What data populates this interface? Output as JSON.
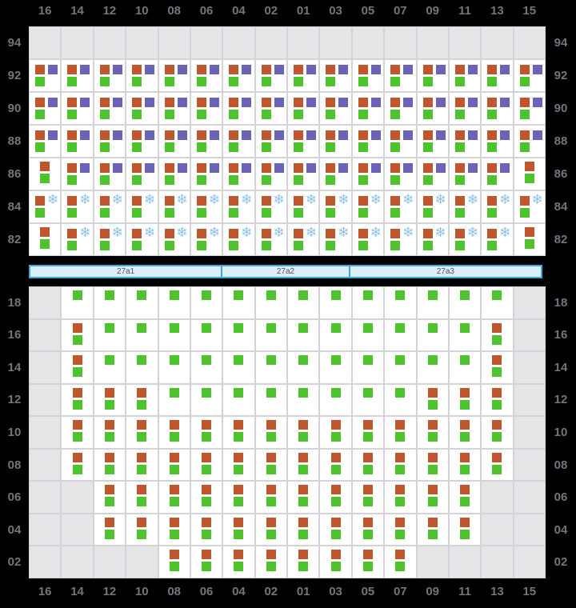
{
  "colors": {
    "background": "#000000",
    "cell_bg": "#ffffff",
    "empty_bg": "#e5e5e7",
    "grid_line": "#d4d4d8",
    "label": "#74747e",
    "orange": "#c0562e",
    "green": "#4ec32d",
    "purple": "#6b63b6",
    "snow": "#8ec1e8",
    "bar_fill": "#ddeffa",
    "bar_border": "#3fa7dc",
    "bar_text": "#54545e"
  },
  "icons": {
    "reefer_glyph": "❄"
  },
  "top_axis": {
    "labels": [
      "16",
      "14",
      "12",
      "10",
      "08",
      "06",
      "04",
      "02",
      "01",
      "03",
      "05",
      "07",
      "09",
      "11",
      "13",
      "15"
    ]
  },
  "bottom_axis": {
    "labels": [
      "16",
      "14",
      "12",
      "10",
      "08",
      "06",
      "04",
      "02",
      "01",
      "03",
      "05",
      "07",
      "09",
      "11",
      "13",
      "15"
    ]
  },
  "bay_bar": {
    "segments": [
      {
        "label": "27a1",
        "width_pct": 37.5
      },
      {
        "label": "27a2",
        "width_pct": 25.0
      },
      {
        "label": "27a3",
        "width_pct": 37.5
      }
    ]
  },
  "cell_styles": {
    "OPG": [
      {
        "kind": "orange",
        "slot": "tl"
      },
      {
        "kind": "purple",
        "slot": "tr"
      },
      {
        "kind": "green",
        "slot": "bl"
      }
    ],
    "OGS": [
      {
        "kind": "orange",
        "slot": "tl"
      },
      {
        "kind": "snow",
        "slot": "tr"
      },
      {
        "kind": "green",
        "slot": "bl"
      }
    ],
    "OG": [
      {
        "kind": "orange",
        "slot": "c1"
      },
      {
        "kind": "green",
        "slot": "c2"
      }
    ],
    "OG2": [
      {
        "kind": "orange",
        "slot": "c1"
      },
      {
        "kind": "green",
        "slot": "c2"
      }
    ],
    "G1": [
      {
        "kind": "green",
        "slot": "c1"
      }
    ],
    "-": []
  },
  "top_grid": {
    "row_labels": [
      "94",
      "92",
      "90",
      "88",
      "86",
      "84",
      "82"
    ],
    "cells": [
      [
        "-",
        "-",
        "-",
        "-",
        "-",
        "-",
        "-",
        "-",
        "-",
        "-",
        "-",
        "-",
        "-",
        "-",
        "-",
        "-"
      ],
      [
        "OPG",
        "OPG",
        "OPG",
        "OPG",
        "OPG",
        "OPG",
        "OPG",
        "OPG",
        "OPG",
        "OPG",
        "OPG",
        "OPG",
        "OPG",
        "OPG",
        "OPG",
        "OPG"
      ],
      [
        "OPG",
        "OPG",
        "OPG",
        "OPG",
        "OPG",
        "OPG",
        "OPG",
        "OPG",
        "OPG",
        "OPG",
        "OPG",
        "OPG",
        "OPG",
        "OPG",
        "OPG",
        "OPG"
      ],
      [
        "OPG",
        "OPG",
        "OPG",
        "OPG",
        "OPG",
        "OPG",
        "OPG",
        "OPG",
        "OPG",
        "OPG",
        "OPG",
        "OPG",
        "OPG",
        "OPG",
        "OPG",
        "OPG"
      ],
      [
        "OG",
        "OPG",
        "OPG",
        "OPG",
        "OPG",
        "OPG",
        "OPG",
        "OPG",
        "OPG",
        "OPG",
        "OPG",
        "OPG",
        "OPG",
        "OPG",
        "OPG",
        "OG"
      ],
      [
        "OGS",
        "OGS",
        "OGS",
        "OGS",
        "OGS",
        "OGS",
        "OGS",
        "OGS",
        "OGS",
        "OGS",
        "OGS",
        "OGS",
        "OGS",
        "OGS",
        "OGS",
        "OGS"
      ],
      [
        "OG",
        "OGS",
        "OGS",
        "OGS",
        "OGS",
        "OGS",
        "OGS",
        "OGS",
        "OGS",
        "OGS",
        "OGS",
        "OGS",
        "OGS",
        "OGS",
        "OGS",
        "OG"
      ]
    ]
  },
  "bottom_grid": {
    "row_labels": [
      "18",
      "16",
      "14",
      "12",
      "10",
      "08",
      "06",
      "04",
      "02"
    ],
    "cells": [
      [
        "-",
        "G1",
        "G1",
        "G1",
        "G1",
        "G1",
        "G1",
        "G1",
        "G1",
        "G1",
        "G1",
        "G1",
        "G1",
        "G1",
        "G1",
        "-"
      ],
      [
        "-",
        "OG2",
        "G1",
        "G1",
        "G1",
        "G1",
        "G1",
        "G1",
        "G1",
        "G1",
        "G1",
        "G1",
        "G1",
        "G1",
        "OG2",
        "-"
      ],
      [
        "-",
        "OG2",
        "G1",
        "G1",
        "G1",
        "G1",
        "G1",
        "G1",
        "G1",
        "G1",
        "G1",
        "G1",
        "G1",
        "G1",
        "OG2",
        "-"
      ],
      [
        "-",
        "OG2",
        "OG2",
        "OG2",
        "G1",
        "G1",
        "G1",
        "G1",
        "G1",
        "G1",
        "G1",
        "G1",
        "OG2",
        "OG2",
        "OG2",
        "-"
      ],
      [
        "-",
        "OG2",
        "OG2",
        "OG2",
        "OG2",
        "OG2",
        "OG2",
        "OG2",
        "OG2",
        "OG2",
        "OG2",
        "OG2",
        "OG2",
        "OG2",
        "OG2",
        "-"
      ],
      [
        "-",
        "OG2",
        "OG2",
        "OG2",
        "OG2",
        "OG2",
        "OG2",
        "OG2",
        "OG2",
        "OG2",
        "OG2",
        "OG2",
        "OG2",
        "OG2",
        "OG2",
        "-"
      ],
      [
        "-",
        "-",
        "OG2",
        "OG2",
        "OG2",
        "OG2",
        "OG2",
        "OG2",
        "OG2",
        "OG2",
        "OG2",
        "OG2",
        "OG2",
        "OG2",
        "-",
        "-"
      ],
      [
        "-",
        "-",
        "OG2",
        "OG2",
        "OG2",
        "OG2",
        "OG2",
        "OG2",
        "OG2",
        "OG2",
        "OG2",
        "OG2",
        "OG2",
        "OG2",
        "-",
        "-"
      ],
      [
        "-",
        "-",
        "-",
        "-",
        "OG2",
        "OG2",
        "OG2",
        "OG2",
        "OG2",
        "OG2",
        "OG2",
        "OG2",
        "-",
        "-",
        "-",
        "-"
      ]
    ]
  }
}
